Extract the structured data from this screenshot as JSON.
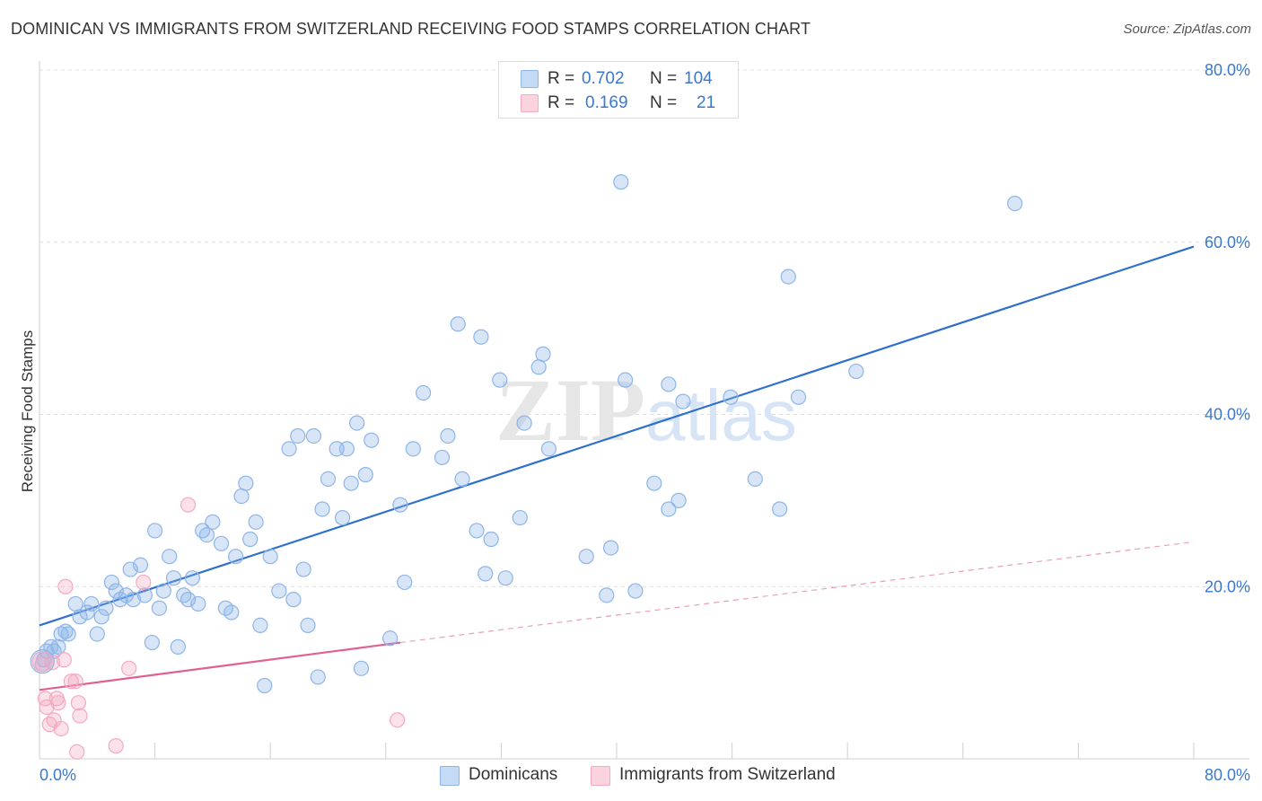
{
  "chart_data": {
    "type": "scatter",
    "title": "DOMINICAN VS IMMIGRANTS FROM SWITZERLAND RECEIVING FOOD STAMPS CORRELATION CHART",
    "source": "Source: ZipAtlas.com",
    "ylabel": "Receiving Food Stamps",
    "xlabel": "",
    "xlim": [
      0,
      80
    ],
    "ylim": [
      0,
      80
    ],
    "x_tick_labels": [
      "0.0%",
      "80.0%"
    ],
    "y_tick_labels": [
      "20.0%",
      "40.0%",
      "60.0%",
      "80.0%"
    ],
    "y_ticks": [
      20,
      40,
      60,
      80
    ],
    "grid": true,
    "watermark": "ZIPatlas",
    "legend_stats": [
      {
        "r_label": "R =",
        "r_value": "0.702",
        "n_label": "N =",
        "n_value": "104"
      },
      {
        "r_label": "R =",
        "r_value": "0.169",
        "n_label": "N =",
        "n_value": "21"
      }
    ],
    "series": [
      {
        "name": "Dominicans",
        "color": "#8db5e8",
        "line_color": "#2f6fce",
        "trend": {
          "x0": 0,
          "y0": 15.5,
          "x1": 80,
          "y1": 59.5
        },
        "points": [
          [
            0.3,
            11.5
          ],
          [
            0.5,
            12.5
          ],
          [
            0.8,
            13.0
          ],
          [
            1.0,
            12.5
          ],
          [
            1.3,
            13.0
          ],
          [
            1.5,
            14.5
          ],
          [
            1.8,
            14.8
          ],
          [
            2.0,
            14.5
          ],
          [
            2.5,
            18.0
          ],
          [
            2.8,
            16.5
          ],
          [
            3.3,
            17.0
          ],
          [
            3.6,
            18.0
          ],
          [
            4.0,
            14.5
          ],
          [
            4.3,
            16.5
          ],
          [
            4.6,
            17.5
          ],
          [
            5.0,
            20.5
          ],
          [
            5.3,
            19.5
          ],
          [
            5.6,
            18.5
          ],
          [
            6.0,
            19.0
          ],
          [
            6.5,
            18.5
          ],
          [
            6.3,
            22.0
          ],
          [
            7.0,
            22.5
          ],
          [
            7.3,
            19.0
          ],
          [
            7.8,
            13.5
          ],
          [
            8.0,
            26.5
          ],
          [
            8.3,
            17.5
          ],
          [
            8.6,
            19.5
          ],
          [
            9.0,
            23.5
          ],
          [
            9.3,
            21.0
          ],
          [
            9.6,
            13.0
          ],
          [
            10.0,
            19.0
          ],
          [
            10.3,
            18.5
          ],
          [
            10.6,
            21.0
          ],
          [
            11.0,
            18.0
          ],
          [
            11.3,
            26.5
          ],
          [
            11.6,
            26.0
          ],
          [
            12.0,
            27.5
          ],
          [
            12.6,
            25.0
          ],
          [
            12.9,
            17.5
          ],
          [
            13.3,
            17.0
          ],
          [
            13.6,
            23.5
          ],
          [
            14.0,
            30.5
          ],
          [
            14.3,
            32.0
          ],
          [
            14.6,
            25.5
          ],
          [
            15.0,
            27.5
          ],
          [
            15.3,
            15.5
          ],
          [
            15.6,
            8.5
          ],
          [
            16.0,
            23.5
          ],
          [
            16.6,
            19.5
          ],
          [
            17.3,
            36.0
          ],
          [
            17.6,
            18.5
          ],
          [
            17.9,
            37.5
          ],
          [
            18.3,
            22.0
          ],
          [
            18.6,
            15.5
          ],
          [
            19.0,
            37.5
          ],
          [
            19.3,
            9.5
          ],
          [
            19.6,
            29.0
          ],
          [
            20.0,
            32.5
          ],
          [
            20.6,
            36.0
          ],
          [
            21.0,
            28.0
          ],
          [
            21.3,
            36.0
          ],
          [
            21.6,
            32.0
          ],
          [
            22.0,
            39.0
          ],
          [
            22.3,
            10.5
          ],
          [
            22.6,
            33.0
          ],
          [
            23.0,
            37.0
          ],
          [
            24.3,
            14.0
          ],
          [
            25.0,
            29.5
          ],
          [
            25.3,
            20.5
          ],
          [
            25.9,
            36.0
          ],
          [
            26.6,
            42.5
          ],
          [
            27.9,
            35.0
          ],
          [
            28.3,
            37.5
          ],
          [
            29.0,
            50.5
          ],
          [
            29.3,
            32.5
          ],
          [
            30.3,
            26.5
          ],
          [
            30.6,
            49.0
          ],
          [
            30.9,
            21.5
          ],
          [
            31.3,
            25.5
          ],
          [
            31.9,
            44.0
          ],
          [
            32.3,
            21.0
          ],
          [
            33.3,
            28.0
          ],
          [
            33.6,
            39.0
          ],
          [
            34.6,
            45.5
          ],
          [
            34.9,
            47.0
          ],
          [
            35.3,
            36.0
          ],
          [
            37.9,
            23.5
          ],
          [
            39.3,
            19.0
          ],
          [
            39.6,
            24.5
          ],
          [
            40.3,
            67.0
          ],
          [
            40.6,
            44.0
          ],
          [
            41.3,
            19.5
          ],
          [
            42.6,
            32.0
          ],
          [
            43.6,
            43.5
          ],
          [
            43.6,
            29.0
          ],
          [
            44.3,
            30.0
          ],
          [
            44.6,
            41.5
          ],
          [
            47.9,
            42.0
          ],
          [
            49.6,
            32.5
          ],
          [
            51.3,
            29.0
          ],
          [
            51.9,
            56.0
          ],
          [
            52.6,
            42.0
          ],
          [
            56.6,
            45.0
          ],
          [
            67.6,
            64.5
          ]
        ]
      },
      {
        "name": "Immigrants from Switzerland",
        "color": "#f4a9c1",
        "line_color": "#e06092",
        "trend": {
          "x0": 0,
          "y0": 8.0,
          "x1": 25,
          "y1": 13.5
        },
        "trend_extension": {
          "x0": 25,
          "y0": 13.5,
          "x1": 80,
          "y1": 25.2
        },
        "points": [
          [
            0.2,
            11.0
          ],
          [
            0.4,
            7.0
          ],
          [
            0.5,
            6.0
          ],
          [
            0.7,
            4.0
          ],
          [
            1.0,
            4.5
          ],
          [
            1.2,
            7.0
          ],
          [
            1.3,
            6.5
          ],
          [
            1.5,
            3.5
          ],
          [
            1.7,
            11.5
          ],
          [
            1.8,
            20.0
          ],
          [
            2.2,
            9.0
          ],
          [
            2.5,
            9.0
          ],
          [
            2.6,
            0.8
          ],
          [
            2.7,
            6.5
          ],
          [
            2.8,
            5.0
          ],
          [
            5.3,
            1.5
          ],
          [
            6.2,
            10.5
          ],
          [
            7.2,
            20.5
          ],
          [
            10.3,
            29.5
          ],
          [
            24.8,
            4.5
          ],
          [
            0.9,
            11.2
          ]
        ]
      }
    ]
  }
}
